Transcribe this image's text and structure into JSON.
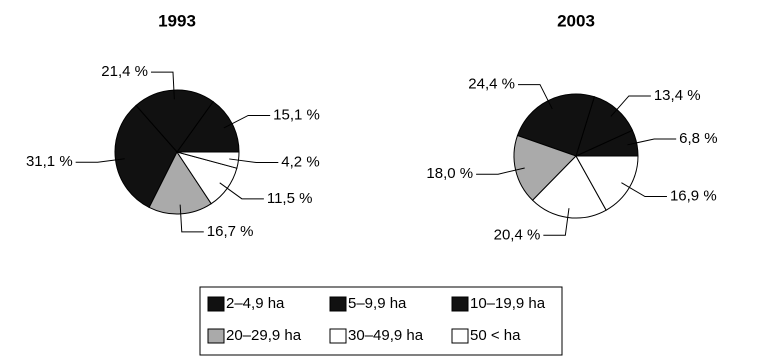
{
  "chart_data": [
    {
      "type": "pie",
      "title": "1993",
      "categories": [
        "2–4,9 ha",
        "5–9,9 ha",
        "10–19,9 ha",
        "20–29,9 ha",
        "30–49,9 ha",
        "50 < ha"
      ],
      "values": [
        15.1,
        21.4,
        31.1,
        16.7,
        11.5,
        4.2
      ],
      "value_labels": [
        "15,1 %",
        "21,4 %",
        "31,1 %",
        "16,7 %",
        "11,5 %",
        "4,2 %"
      ],
      "colors": [
        "#111111",
        "#111111",
        "#111111",
        "#aaaaaa",
        "#ffffff",
        "#ffffff"
      ]
    },
    {
      "type": "pie",
      "title": "2003",
      "categories": [
        "2–4,9 ha",
        "5–9,9 ha",
        "10–19,9 ha",
        "20–29,9 ha",
        "30–49,9 ha",
        "50 < ha"
      ],
      "values": [
        6.8,
        13.4,
        24.4,
        18.0,
        20.4,
        16.9
      ],
      "value_labels": [
        "6,8 %",
        "13,4 %",
        "24,4 %",
        "18,0 %",
        "20,4 %",
        "16,9 %"
      ],
      "colors": [
        "#111111",
        "#111111",
        "#111111",
        "#aaaaaa",
        "#ffffff",
        "#ffffff"
      ]
    }
  ]
}
